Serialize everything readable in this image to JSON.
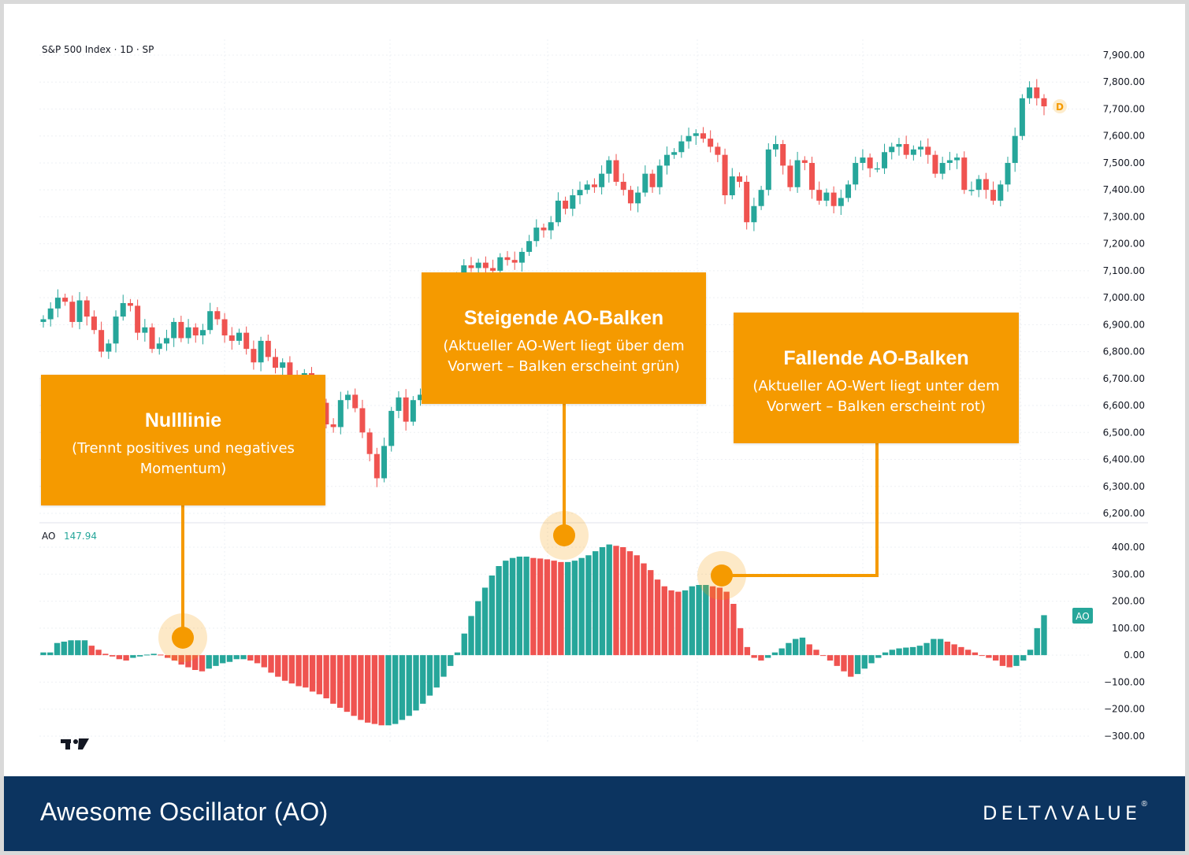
{
  "header": {
    "symbol_line": "S&P 500 Index · 1D · SP"
  },
  "price_badge": "D",
  "ao_legend": {
    "label": "AO",
    "value": "147.94"
  },
  "ao_badge": "AO",
  "callouts": {
    "zero_line": {
      "title": "Nulllinie",
      "text": "(Trennt positives und negatives Momentum)"
    },
    "rising": {
      "title": "Steigende AO-Balken",
      "text": "(Aktueller AO-Wert liegt über dem Vorwert – Balken erscheint grün)"
    },
    "falling": {
      "title": "Fallende AO-Balken",
      "text": "(Aktueller AO-Wert liegt unter dem Vorwert – Balken erscheint rot)"
    }
  },
  "footer": {
    "title": "Awesome Oscillator (AO)",
    "brand": "DELTΛVALUE",
    "reg": "®"
  },
  "colors": {
    "up": "#26a69a",
    "down": "#ef5350",
    "accent": "#f59a00",
    "footer_bg": "#0c3460"
  },
  "chart_data": [
    {
      "type": "candlestick",
      "title": "S&P 500 Index · 1D · SP",
      "y_ticks": [
        "7,900.00",
        "7,800.00",
        "7,700.00",
        "7,600.00",
        "7,500.00",
        "7,400.00",
        "7,300.00",
        "7,200.00",
        "7,100.00",
        "7,000.00",
        "6,900.00",
        "6,800.00",
        "6,700.00",
        "6,600.00",
        "6,500.00",
        "6,400.00",
        "6,300.00",
        "6,200.00"
      ],
      "ylim": [
        6200,
        7900
      ],
      "close": [
        6920,
        6960,
        7000,
        6985,
        6910,
        6990,
        6930,
        6880,
        6800,
        6830,
        6930,
        6980,
        6970,
        6870,
        6890,
        6810,
        6830,
        6850,
        6910,
        6850,
        6890,
        6860,
        6880,
        6950,
        6920,
        6860,
        6840,
        6870,
        6810,
        6760,
        6840,
        6780,
        6740,
        6760,
        6700,
        6690,
        6720,
        6650,
        6610,
        6530,
        6520,
        6620,
        6640,
        6590,
        6500,
        6420,
        6330,
        6450,
        6580,
        6630,
        6540,
        6620,
        6640,
        6770,
        6860,
        6920,
        7010,
        7080,
        7120,
        7110,
        7130,
        7110,
        7100,
        7150,
        7140,
        7130,
        7170,
        7210,
        7260,
        7250,
        7280,
        7360,
        7330,
        7380,
        7400,
        7420,
        7410,
        7460,
        7510,
        7430,
        7400,
        7350,
        7390,
        7460,
        7410,
        7490,
        7530,
        7540,
        7580,
        7600,
        7610,
        7590,
        7560,
        7530,
        7380,
        7450,
        7430,
        7280,
        7340,
        7400,
        7550,
        7570,
        7490,
        7410,
        7510,
        7500,
        7400,
        7360,
        7390,
        7340,
        7370,
        7420,
        7500,
        7520,
        7480,
        7480,
        7540,
        7560,
        7570,
        7530,
        7550,
        7560,
        7530,
        7460,
        7500,
        7510,
        7520,
        7400,
        7400,
        7440,
        7400,
        7360,
        7420,
        7500,
        7600,
        7740,
        7780,
        7740,
        7710
      ],
      "change_note": "values in index points, read approximately from chart"
    },
    {
      "type": "bar",
      "title": "AO",
      "last_value": 147.94,
      "y_ticks": [
        "400.00",
        "300.00",
        "200.00",
        "100.00",
        "0.00",
        "−100.00",
        "−200.00",
        "−300.00"
      ],
      "ylim": [
        -300,
        400
      ],
      "values": [
        10,
        10,
        45,
        50,
        55,
        55,
        55,
        35,
        20,
        5,
        -5,
        -15,
        -20,
        -10,
        -5,
        2,
        5,
        2,
        -10,
        -20,
        -35,
        -45,
        -55,
        -60,
        -50,
        -40,
        -30,
        -25,
        -15,
        -15,
        -20,
        -30,
        -45,
        -65,
        -80,
        -95,
        -105,
        -115,
        -120,
        -135,
        -145,
        -160,
        -180,
        -195,
        -210,
        -225,
        -240,
        -250,
        -255,
        -260,
        -260,
        -255,
        -240,
        -225,
        -205,
        -180,
        -150,
        -120,
        -80,
        -40,
        10,
        80,
        145,
        200,
        250,
        295,
        330,
        350,
        360,
        365,
        365,
        360,
        358,
        355,
        350,
        345,
        345,
        350,
        360,
        370,
        385,
        400,
        410,
        405,
        400,
        385,
        370,
        340,
        315,
        280,
        255,
        240,
        235,
        240,
        255,
        260,
        260,
        255,
        250,
        235,
        190,
        100,
        30,
        -10,
        -20,
        -10,
        10,
        25,
        45,
        60,
        65,
        40,
        20,
        0,
        -20,
        -40,
        -60,
        -80,
        -70,
        -50,
        -30,
        -10,
        10,
        20,
        25,
        28,
        30,
        35,
        45,
        60,
        60,
        50,
        40,
        30,
        20,
        10,
        0,
        -10,
        -20,
        -40,
        -45,
        -40,
        -20,
        20,
        100,
        148
      ]
    }
  ]
}
